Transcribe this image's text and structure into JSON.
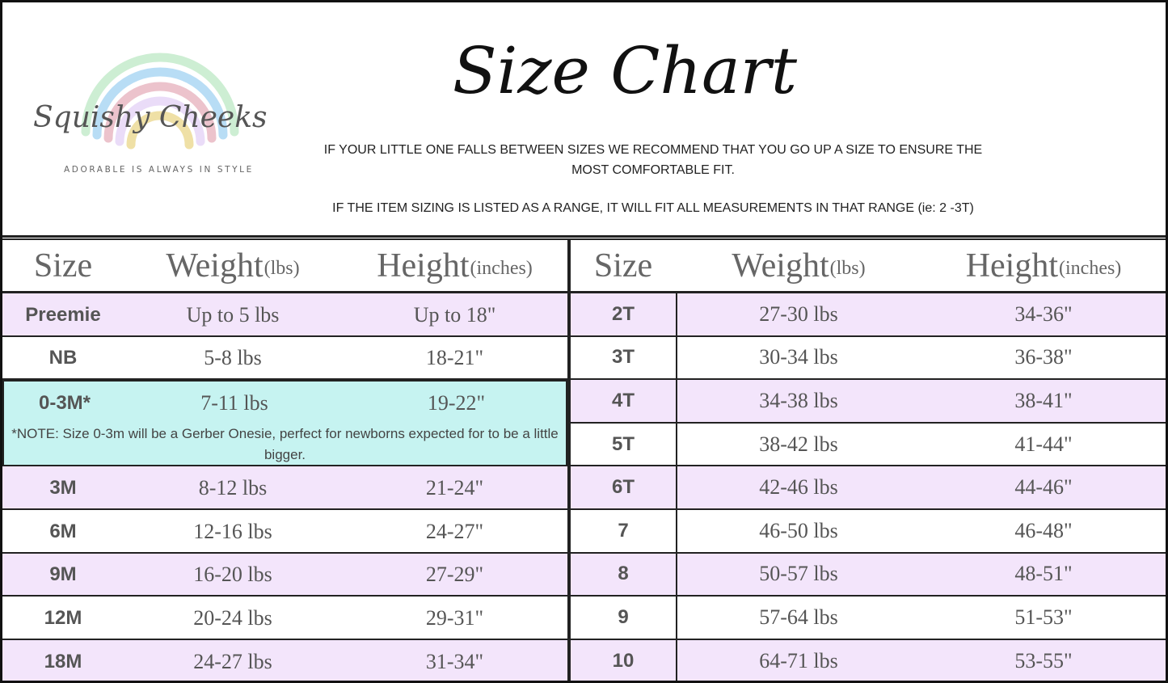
{
  "logo": {
    "script": "Squishy Cheeks",
    "tagline": "ADORABLE IS ALWAYS IN STYLE",
    "rainbow_colors": [
      "#cdeed3",
      "#b8ddf5",
      "#ecc3cc",
      "#eadcf8",
      "#efe0a6"
    ]
  },
  "title": "Size Chart",
  "notes": {
    "line1": "IF YOUR LITTLE ONE FALLS BETWEEN SIZES WE RECOMMEND THAT YOU GO UP A SIZE TO ENSURE THE MOST COMFORTABLE FIT.",
    "line2": "IF THE ITEM SIZING IS LISTED AS A RANGE, IT WILL FIT ALL MEASUREMENTS IN THAT RANGE (ie: 2 -3T)"
  },
  "headers": {
    "size": "Size",
    "weight": "Weight",
    "weight_unit": "(lbs)",
    "height": "Height",
    "height_unit": "(inches)"
  },
  "colors": {
    "lavender": "#f3e5fb",
    "teal": "#c6f3f1"
  },
  "left_rows": [
    {
      "size": "Preemie",
      "weight": "Up to 5 lbs",
      "height": "Up to 18\"",
      "color": "lav"
    },
    {
      "size": "NB",
      "weight": "5-8 lbs",
      "height": "18-21\"",
      "color": "wht"
    },
    {
      "size": "0-3M*",
      "weight": "7-11 lbs",
      "height": "19-22\"",
      "color": "teal",
      "note": "*NOTE: Size 0-3m will be a Gerber Onesie, perfect for  newborns expected for  to be a little bigger."
    },
    {
      "size": "3M",
      "weight": "8-12 lbs",
      "height": "21-24\"",
      "color": "lav"
    },
    {
      "size": "6M",
      "weight": "12-16 lbs",
      "height": "24-27\"",
      "color": "wht"
    },
    {
      "size": "9M",
      "weight": "16-20 lbs",
      "height": "27-29\"",
      "color": "lav"
    },
    {
      "size": "12M",
      "weight": "20-24 lbs",
      "height": "29-31\"",
      "color": "wht"
    },
    {
      "size": "18M",
      "weight": "24-27 lbs",
      "height": "31-34\"",
      "color": "lav"
    }
  ],
  "right_rows": [
    {
      "size": "2T",
      "weight": "27-30 lbs",
      "height": "34-36\"",
      "color": "lav"
    },
    {
      "size": "3T",
      "weight": "30-34 lbs",
      "height": "36-38\"",
      "color": "wht"
    },
    {
      "size": "4T",
      "weight": "34-38 lbs",
      "height": "38-41\"",
      "color": "lav"
    },
    {
      "size": "5T",
      "weight": "38-42 lbs",
      "height": "41-44\"",
      "color": "wht"
    },
    {
      "size": "6T",
      "weight": "42-46 lbs",
      "height": "44-46\"",
      "color": "lav"
    },
    {
      "size": "7",
      "weight": "46-50 lbs",
      "height": "46-48\"",
      "color": "wht"
    },
    {
      "size": "8",
      "weight": "50-57 lbs",
      "height": "48-51\"",
      "color": "lav"
    },
    {
      "size": "9",
      "weight": "57-64 lbs",
      "height": "51-53\"",
      "color": "wht"
    },
    {
      "size": "10",
      "weight": "64-71 lbs",
      "height": "53-55\"",
      "color": "lav"
    }
  ]
}
